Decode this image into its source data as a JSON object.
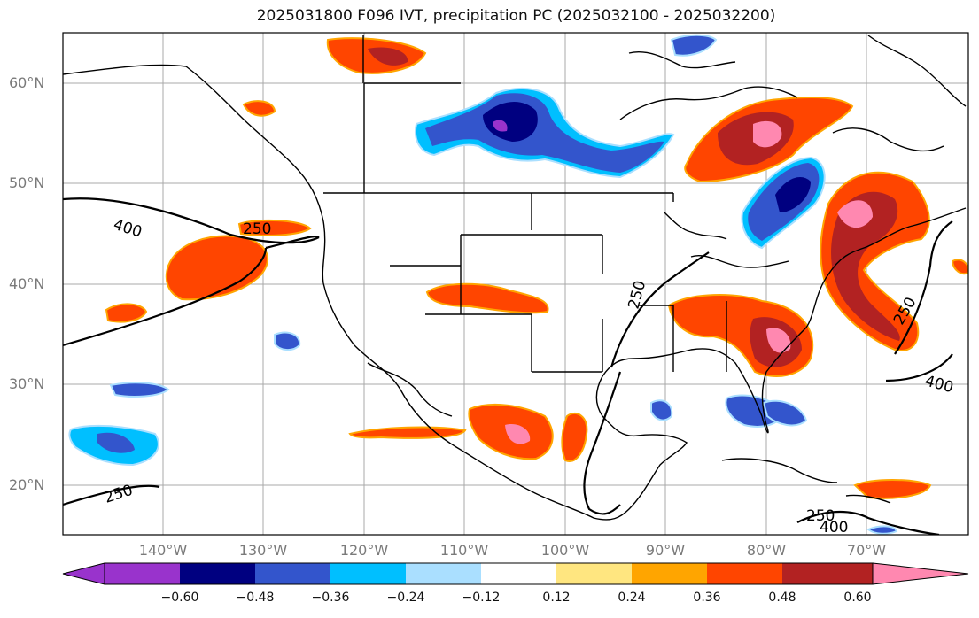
{
  "title": "2025031800 F096 IVT, precipitation PC (2025032100 - 2025032200)",
  "map": {
    "lat_labels": [
      "60°N",
      "50°N",
      "40°N",
      "30°N",
      "20°N"
    ],
    "lon_labels": [
      "140°W",
      "130°W",
      "120°W",
      "110°W",
      "100°W",
      "90°W",
      "80°W",
      "70°W"
    ],
    "ivt_contour_labels": [
      "400",
      "250",
      "250",
      "250",
      "400",
      "250",
      "250",
      "400"
    ],
    "grid": true
  },
  "colorbar": {
    "tick_labels": [
      "−0.60",
      "−0.48",
      "−0.36",
      "−0.24",
      "−0.12",
      "0.12",
      "0.24",
      "0.36",
      "0.48",
      "0.60"
    ],
    "colors": [
      "#9933cc",
      "#000080",
      "#3355cc",
      "#00bfff",
      "#aadfff",
      "#ffffff",
      "#ffe680",
      "#ffa500",
      "#ff4500",
      "#b22222",
      "#ff88b0"
    ]
  }
}
